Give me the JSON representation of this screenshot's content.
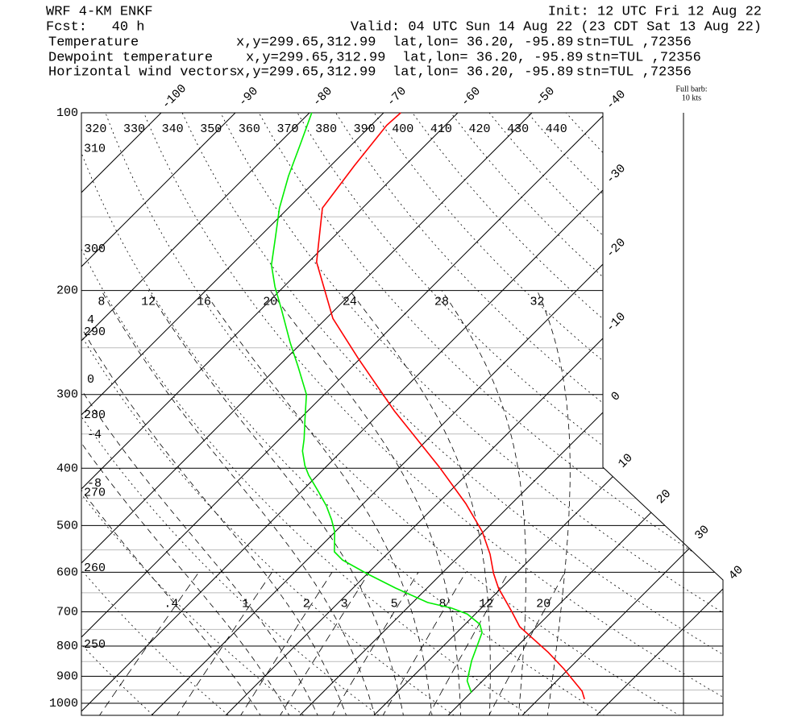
{
  "header": {
    "title": "WRF 4-KM ENKF",
    "forecast": "Fcst:   40 h",
    "init": "Init: 12 UTC Fri 12 Aug 22",
    "valid": "Valid: 04 UTC Sun 14 Aug 22 (23 CDT Sat 13 Aug 22)"
  },
  "legend": [
    {
      "xy": "x,y=299.65,312.99",
      "latlon": "lat,lon= 36.20, -95.89",
      "station": "stn=TUL ,72356"
    },
    {
      "xy": "x,y=299.65,312.99",
      "latlon": "lat,lon= 36.20, -95.89",
      "station": "stn=TUL ,72356"
    },
    {
      "name": "Horizontal wind vectors",
      "color": "#000000",
      "xy": "x,y=299.65,312.99",
      "latlon": "lat,lon= 36.20, -95.89",
      "station": "stn=TUL ,72356"
    }
  ],
  "wind_key": [
    "Full barb:",
    "10 kts"
  ],
  "chart_data": {
    "type": "skewt",
    "plim": [
      100,
      1000
    ],
    "pressure_ticks": [
      100,
      200,
      300,
      400,
      500,
      600,
      700,
      800,
      900,
      1000
    ],
    "minor_pressure_ticks": [
      150,
      250,
      350,
      450,
      550,
      650,
      750,
      850,
      950
    ],
    "isotherms": [
      -100,
      -90,
      -80,
      -70,
      -60,
      -50,
      -40,
      -30,
      -20,
      -10,
      0,
      10,
      20,
      30,
      40
    ],
    "dry_adiabats": [
      250,
      260,
      270,
      280,
      290,
      300,
      310,
      320,
      330,
      340,
      350,
      360,
      370,
      380,
      390,
      400,
      410,
      420,
      430,
      440
    ],
    "moist_adiabats": [
      -8,
      -4,
      0,
      4,
      8,
      12,
      16,
      20,
      24,
      28,
      32
    ],
    "mixing_ratios": [
      {
        "value": 0.4,
        "label": ".4"
      },
      1,
      2,
      3,
      5,
      8,
      12,
      20
    ],
    "series": [
      {
        "name": "Temperature",
        "color": "#ff0000",
        "p": [
          984,
          954,
          874,
          820,
          742,
          701,
          638,
          603,
          559,
          512,
          459,
          398,
          320,
          261,
          223,
          179,
          145,
          123,
          105,
          100
        ],
        "values": [
          36.2,
          34.8,
          29.3,
          25.0,
          17.7,
          14.7,
          9.6,
          7.0,
          3.9,
          -0.2,
          -6.2,
          -14.7,
          -28.3,
          -40.2,
          -49.1,
          -58.9,
          -65.4,
          -66.8,
          -67.9,
          -67.7
        ]
      },
      {
        "name": "Dewpoint temperature",
        "color": "#00ee00",
        "p": [
          960,
          916,
          847,
          759,
          735,
          706,
          690,
          675,
          638,
          603,
          572,
          554,
          512,
          489,
          463,
          438,
          411,
          396,
          374,
          357,
          330,
          300,
          269,
          245,
          216,
          197,
          181,
          163,
          145,
          128,
          113,
          100
        ],
        "values": [
          20.1,
          17.9,
          15.8,
          13.4,
          12.0,
          8.9,
          6.0,
          2.0,
          -4.3,
          -10.1,
          -15.2,
          -17.4,
          -20.1,
          -22.1,
          -24.7,
          -27.7,
          -31.2,
          -33.0,
          -35.3,
          -36.7,
          -39.3,
          -42.4,
          -47.3,
          -51.6,
          -57.1,
          -61.2,
          -64.6,
          -67.7,
          -71.2,
          -74.3,
          -77.0,
          -79.7
        ]
      }
    ]
  }
}
